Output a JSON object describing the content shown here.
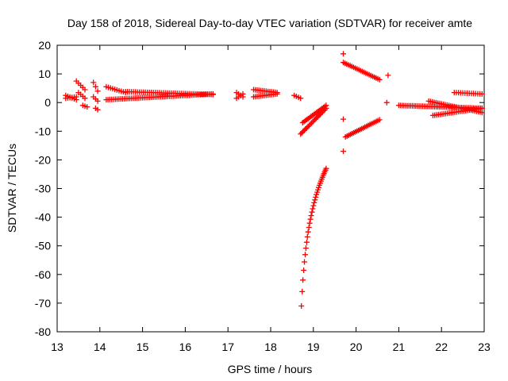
{
  "chart_data": {
    "type": "scatter",
    "title": "Day 158 of 2018, Sidereal Day-to-day VTEC variation (SDTVAR) for receiver amte",
    "xlabel": "GPS time / hours",
    "ylabel": "SDTVAR / TECUs",
    "xlim": [
      13,
      23
    ],
    "ylim": [
      -80,
      20
    ],
    "xticks": [
      13,
      14,
      15,
      16,
      17,
      18,
      19,
      20,
      21,
      22,
      23
    ],
    "yticks": [
      -80,
      -70,
      -60,
      -50,
      -40,
      -30,
      -20,
      -10,
      0,
      10,
      20
    ],
    "grid": false,
    "marker": "+",
    "marker_color": "#ff0000",
    "series": [
      {
        "name": "SDTVAR",
        "color": "#ff0000",
        "segments": [
          {
            "x0": 13.2,
            "x1": 13.45,
            "y0": 1.5,
            "y1": 2.0,
            "n": 6
          },
          {
            "x0": 13.2,
            "x1": 13.45,
            "y0": 2.5,
            "y1": 1.0,
            "n": 6
          },
          {
            "x0": 13.45,
            "x1": 13.65,
            "y0": 7.5,
            "y1": 4.5,
            "n": 5
          },
          {
            "x0": 13.5,
            "x1": 13.65,
            "y0": 3.5,
            "y1": 1.5,
            "n": 4
          },
          {
            "x0": 13.6,
            "x1": 13.7,
            "y0": -1.0,
            "y1": -1.5,
            "n": 3
          },
          {
            "x0": 13.85,
            "x1": 13.95,
            "y0": 7.0,
            "y1": 4.0,
            "n": 3
          },
          {
            "x0": 13.85,
            "x1": 13.95,
            "y0": 2.0,
            "y1": 0.5,
            "n": 3
          },
          {
            "x0": 13.9,
            "x1": 13.95,
            "y0": -2.0,
            "y1": -2.5,
            "n": 2
          },
          {
            "x0": 14.15,
            "x1": 14.6,
            "y0": 5.5,
            "y1": 3.5,
            "n": 10
          },
          {
            "x0": 14.15,
            "x1": 16.65,
            "y0": 1.0,
            "y1": 3.0,
            "n": 60
          },
          {
            "x0": 14.6,
            "x1": 16.65,
            "y0": 3.8,
            "y1": 2.8,
            "n": 45
          },
          {
            "x0": 17.2,
            "x1": 17.35,
            "y0": 3.5,
            "y1": 2.0,
            "n": 4
          },
          {
            "x0": 17.2,
            "x1": 17.35,
            "y0": 1.5,
            "y1": 3.0,
            "n": 4
          },
          {
            "x0": 17.6,
            "x1": 18.15,
            "y0": 4.5,
            "y1": 3.5,
            "n": 14
          },
          {
            "x0": 17.6,
            "x1": 18.15,
            "y0": 2.0,
            "y1": 3.0,
            "n": 14
          },
          {
            "x0": 18.55,
            "x1": 18.7,
            "y0": 2.5,
            "y1": 1.5,
            "n": 4
          },
          {
            "x0": 18.7,
            "x1": 19.3,
            "y0": -11.0,
            "y1": -2.0,
            "n": 22
          },
          {
            "x0": 18.75,
            "x1": 19.3,
            "y0": -7.0,
            "y1": -1.0,
            "n": 18
          },
          {
            "x0": 19.7,
            "x1": 20.55,
            "y0": 14.0,
            "y1": 8.0,
            "n": 22
          },
          {
            "x0": 19.75,
            "x1": 20.55,
            "y0": -12.0,
            "y1": -6.0,
            "n": 22
          },
          {
            "x0": 21.0,
            "x1": 22.95,
            "y0": -1.0,
            "y1": -2.0,
            "n": 50
          },
          {
            "x0": 21.7,
            "x1": 22.95,
            "y0": 0.5,
            "y1": -3.5,
            "n": 30
          },
          {
            "x0": 21.8,
            "x1": 22.95,
            "y0": -4.5,
            "y1": -2.0,
            "n": 28
          },
          {
            "x0": 22.3,
            "x1": 22.95,
            "y0": 3.5,
            "y1": 3.0,
            "n": 14
          }
        ],
        "curve": {
          "type": "log",
          "x0": 18.72,
          "x1": 19.3,
          "ymin": -71.0,
          "ymax": -23.0,
          "n": 34
        },
        "points": [
          [
            19.7,
            17.0
          ],
          [
            19.7,
            -5.8
          ],
          [
            19.7,
            -17.0
          ],
          [
            20.75,
            9.5
          ],
          [
            20.72,
            0.0
          ]
        ]
      }
    ]
  }
}
